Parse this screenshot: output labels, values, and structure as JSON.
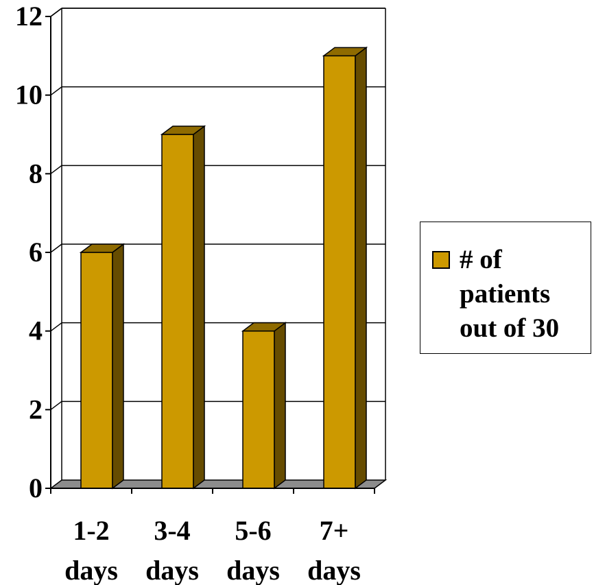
{
  "chart_data": {
    "type": "bar",
    "style": "3d",
    "categories": [
      "1-2 days",
      "3-4 days",
      "5-6 days",
      "7+ days"
    ],
    "category_lines": [
      [
        "1-2",
        "days"
      ],
      [
        "3-4",
        "days"
      ],
      [
        "5-6",
        "days"
      ],
      [
        "7+",
        "days"
      ]
    ],
    "series": [
      {
        "name": "# of patients out of 30",
        "values": [
          6,
          9,
          4,
          11
        ]
      }
    ],
    "title": "",
    "xlabel": "",
    "ylabel": "",
    "ylim": [
      0,
      12
    ],
    "yticks": [
      "0",
      "2",
      "4",
      "6",
      "8",
      "10",
      "12"
    ],
    "grid": true,
    "legend_position": "right",
    "colors": {
      "bar_front": "#cc9900",
      "bar_top": "#8f6b00",
      "bar_side": "#664c00",
      "floor": "#8c8c8c"
    }
  },
  "legend": {
    "label_lines": [
      "# of",
      "patients",
      "out of 30"
    ]
  }
}
